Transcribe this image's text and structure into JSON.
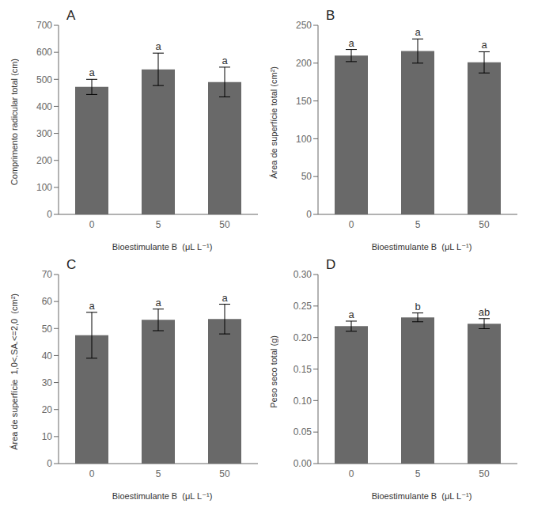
{
  "chart_data": [
    {
      "type": "bar",
      "title": "A",
      "ylabel": "Comprimento radicular total (cm)",
      "xlabel": "Bioestimulante B  (μL L⁻¹)",
      "categories": [
        "0",
        "5",
        "50"
      ],
      "values": [
        472,
        537,
        490
      ],
      "errors": [
        28,
        60,
        55
      ],
      "annotations": [
        "a",
        "a",
        "a"
      ],
      "color": "#696969",
      "ylim": [
        0,
        700
      ],
      "yticks": [
        0,
        100,
        200,
        300,
        400,
        500,
        600,
        700
      ],
      "grid": false
    },
    {
      "type": "bar",
      "title": "B",
      "ylabel": "Área de superfície total (cm²)",
      "xlabel": "Bioestimulante B  (μL L⁻¹)",
      "categories": [
        "0",
        "5",
        "50"
      ],
      "values": [
        210,
        216,
        201
      ],
      "errors": [
        8,
        16,
        14
      ],
      "annotations": [
        "a",
        "a",
        "a"
      ],
      "color": "#696969",
      "ylim": [
        0,
        250
      ],
      "yticks": [
        0,
        50,
        100,
        150,
        200,
        250
      ],
      "grid": false
    },
    {
      "type": "bar",
      "title": "C",
      "ylabel": "Área de superfície  1,0<.SA.<=2,0  (cm²)",
      "xlabel": "Bioestimulante B  (μL L⁻¹)",
      "categories": [
        "0",
        "5",
        "50"
      ],
      "values": [
        47.5,
        53.2,
        53.5
      ],
      "errors": [
        8.5,
        4.0,
        5.5
      ],
      "annotations": [
        "a",
        "a",
        "a"
      ],
      "color": "#696969",
      "ylim": [
        0,
        70
      ],
      "yticks": [
        0,
        10,
        20,
        30,
        40,
        50,
        60,
        70
      ],
      "grid": false
    },
    {
      "type": "bar",
      "title": "D",
      "ylabel": "Peso seco total (g)",
      "xlabel": "Bioestimulante B  (μL L⁻¹)",
      "categories": [
        "0",
        "5",
        "50"
      ],
      "values": [
        0.218,
        0.232,
        0.222
      ],
      "errors": [
        0.008,
        0.007,
        0.008
      ],
      "annotations": [
        "a",
        "b",
        "ab"
      ],
      "color": "#696969",
      "ylim": [
        0,
        0.3
      ],
      "yticks": [
        {
          "value": 0,
          "label": "0.00"
        },
        0.05,
        {
          "value": 0.1,
          "label": "0.10"
        },
        0.15,
        {
          "value": 0.2,
          "label": "0.20"
        },
        0.25,
        {
          "value": 0.3,
          "label": "0.30"
        }
      ],
      "grid": false
    }
  ]
}
